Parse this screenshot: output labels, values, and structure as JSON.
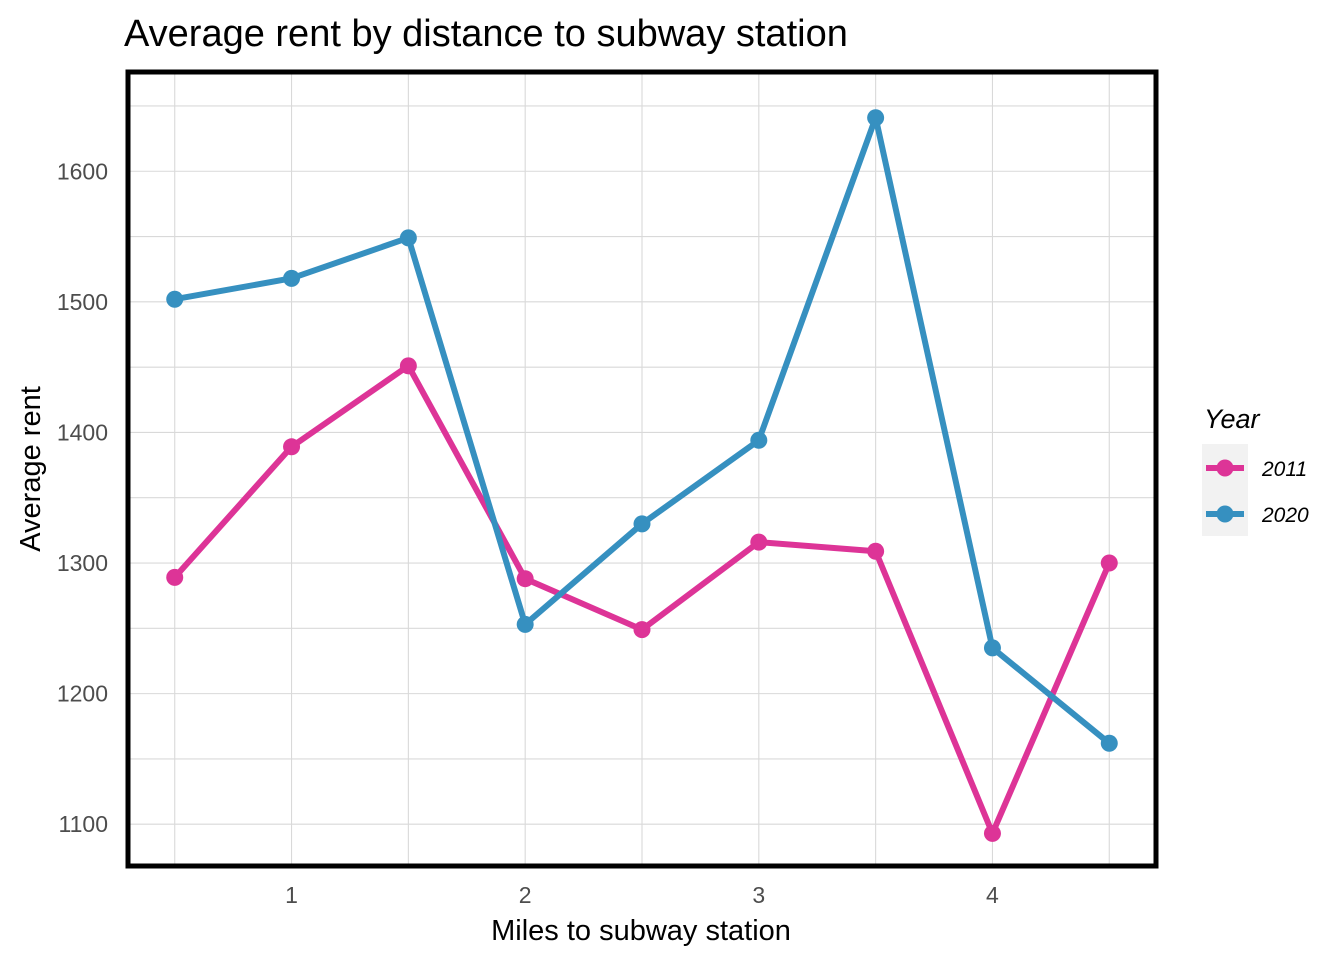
{
  "chart_data": {
    "type": "line",
    "title": "Average rent by distance to subway station",
    "xlabel": "Miles to subway station",
    "ylabel": "Average rent",
    "x": [
      0.5,
      1,
      1.5,
      2,
      2.5,
      3,
      3.5,
      4,
      4.5
    ],
    "xticks": [
      1,
      2,
      3,
      4
    ],
    "yticks": [
      1100,
      1200,
      1300,
      1400,
      1500,
      1600
    ],
    "xlim": [
      0.3,
      4.7
    ],
    "ylim": [
      1068,
      1676
    ],
    "grid": true,
    "legend": {
      "title": "Year",
      "position": "right"
    },
    "series": [
      {
        "name": "2011",
        "color": "#dd3497",
        "values": [
          1289,
          1389,
          1451,
          1288,
          1249,
          1316,
          1309,
          1093,
          1300
        ]
      },
      {
        "name": "2020",
        "color": "#3690c0",
        "values": [
          1502,
          1518,
          1549,
          1253,
          1330,
          1394,
          1641,
          1235,
          1162
        ]
      }
    ]
  }
}
